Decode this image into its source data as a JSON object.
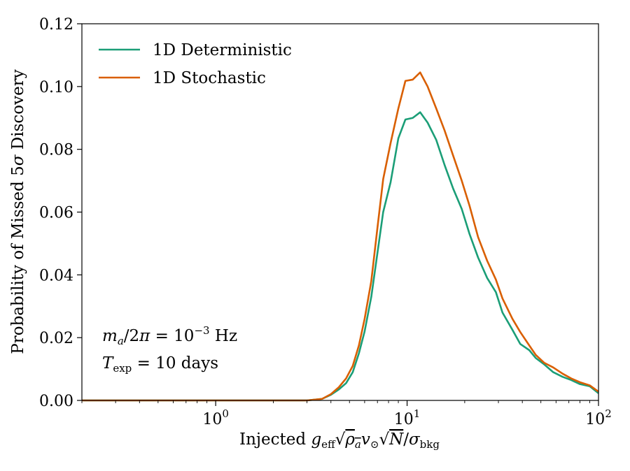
{
  "chart_data": {
    "type": "line",
    "xscale": "log",
    "xlim": [
      0.2,
      100
    ],
    "ylim": [
      0.0,
      0.12
    ],
    "grid": false,
    "legend_position": "top-left",
    "xlabel": "Injected g_eff √ρ_a v_⊙ √N / σ_bkg",
    "ylabel": "Probability of Missed 5σ Discovery",
    "x_ticks": [
      {
        "value": 1,
        "label": "10^0"
      },
      {
        "value": 10,
        "label": "10^1"
      },
      {
        "value": 100,
        "label": "10^2"
      }
    ],
    "y_ticks": [
      0.0,
      0.02,
      0.04,
      0.06,
      0.08,
      0.1,
      0.12
    ],
    "y_tick_labels": [
      "0.00",
      "0.02",
      "0.04",
      "0.06",
      "0.08",
      "0.10",
      "0.12"
    ],
    "annotations": [
      "m_a/2π = 10^−3 Hz",
      "T_exp = 10 days"
    ],
    "series": [
      {
        "name": "1D Deterministic",
        "color": "#1b9e77",
        "points": [
          [
            0.2,
            0.0
          ],
          [
            1.0,
            0.0
          ],
          [
            2.0,
            0.0
          ],
          [
            3.0,
            0.0
          ],
          [
            3.6,
            0.0005
          ],
          [
            4.0,
            0.0018
          ],
          [
            4.4,
            0.0035
          ],
          [
            4.8,
            0.0055
          ],
          [
            5.2,
            0.009
          ],
          [
            5.6,
            0.015
          ],
          [
            6.0,
            0.022
          ],
          [
            6.5,
            0.033
          ],
          [
            7.0,
            0.047
          ],
          [
            7.5,
            0.06
          ],
          [
            8.2,
            0.0695
          ],
          [
            9.0,
            0.0835
          ],
          [
            9.8,
            0.0895
          ],
          [
            10.7,
            0.09
          ],
          [
            11.7,
            0.0918
          ],
          [
            12.8,
            0.0885
          ],
          [
            14.2,
            0.083
          ],
          [
            15.7,
            0.075
          ],
          [
            17.4,
            0.0675
          ],
          [
            19.3,
            0.061
          ],
          [
            21.2,
            0.053
          ],
          [
            23.5,
            0.0455
          ],
          [
            26.2,
            0.039
          ],
          [
            29.1,
            0.0345
          ],
          [
            31.5,
            0.028
          ],
          [
            35.5,
            0.0225
          ],
          [
            39.0,
            0.018
          ],
          [
            43.5,
            0.016
          ],
          [
            47.0,
            0.0135
          ],
          [
            52.0,
            0.0115
          ],
          [
            58.0,
            0.009
          ],
          [
            65.0,
            0.0075
          ],
          [
            72.0,
            0.0065
          ],
          [
            80.0,
            0.0052
          ],
          [
            90.0,
            0.0045
          ],
          [
            100.0,
            0.0023
          ]
        ]
      },
      {
        "name": "1D Stochastic",
        "color": "#d95f02",
        "points": [
          [
            0.2,
            0.0
          ],
          [
            1.0,
            0.0
          ],
          [
            2.0,
            0.0
          ],
          [
            3.0,
            0.0
          ],
          [
            3.6,
            0.0005
          ],
          [
            4.0,
            0.002
          ],
          [
            4.4,
            0.0042
          ],
          [
            4.8,
            0.007
          ],
          [
            5.2,
            0.011
          ],
          [
            5.6,
            0.0175
          ],
          [
            6.0,
            0.026
          ],
          [
            6.5,
            0.038
          ],
          [
            7.0,
            0.055
          ],
          [
            7.5,
            0.0705
          ],
          [
            8.2,
            0.082
          ],
          [
            9.0,
            0.093
          ],
          [
            9.8,
            0.1018
          ],
          [
            10.7,
            0.1022
          ],
          [
            11.7,
            0.1045
          ],
          [
            12.8,
            0.1
          ],
          [
            14.2,
            0.093
          ],
          [
            15.7,
            0.086
          ],
          [
            17.4,
            0.078
          ],
          [
            19.3,
            0.07
          ],
          [
            21.2,
            0.062
          ],
          [
            23.5,
            0.052
          ],
          [
            26.2,
            0.0445
          ],
          [
            29.1,
            0.0385
          ],
          [
            31.5,
            0.0325
          ],
          [
            35.5,
            0.026
          ],
          [
            39.0,
            0.0218
          ],
          [
            43.5,
            0.0175
          ],
          [
            47.0,
            0.0145
          ],
          [
            52.0,
            0.012
          ],
          [
            58.0,
            0.0105
          ],
          [
            65.0,
            0.0085
          ],
          [
            72.0,
            0.007
          ],
          [
            80.0,
            0.0058
          ],
          [
            90.0,
            0.0048
          ],
          [
            100.0,
            0.0028
          ]
        ]
      }
    ]
  }
}
